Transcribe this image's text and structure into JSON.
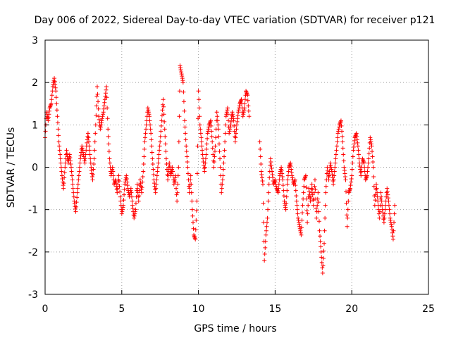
{
  "chart_data": {
    "type": "scatter",
    "title": "Day 006 of 2022, Sidereal Day-to-day VTEC variation (SDTVAR) for receiver p121",
    "xlabel": "GPS time / hours",
    "ylabel": "SDTVAR / TECUs",
    "xlim": [
      0,
      25
    ],
    "ylim": [
      -3,
      3
    ],
    "xticks": [
      0,
      5,
      10,
      15,
      20,
      25
    ],
    "yticks": [
      -3,
      -2,
      -1,
      0,
      1,
      2,
      3
    ],
    "grid": true,
    "marker": "+",
    "color": "#ff0000",
    "series": [
      {
        "name": "SDTVAR",
        "anchors": [
          [
            0.0,
            0.7
          ],
          [
            0.1,
            1.3
          ],
          [
            0.2,
            1.1
          ],
          [
            0.3,
            1.4
          ],
          [
            0.4,
            1.5
          ],
          [
            0.5,
            1.9
          ],
          [
            0.6,
            2.1
          ],
          [
            0.7,
            1.8
          ],
          [
            0.8,
            1.2
          ],
          [
            0.9,
            0.6
          ],
          [
            1.0,
            0.2
          ],
          [
            1.1,
            -0.2
          ],
          [
            1.2,
            -0.5
          ],
          [
            1.3,
            0.0
          ],
          [
            1.4,
            0.4
          ],
          [
            1.5,
            0.1
          ],
          [
            1.6,
            0.3
          ],
          [
            1.7,
            0.0
          ],
          [
            1.8,
            -0.4
          ],
          [
            1.9,
            -0.8
          ],
          [
            2.0,
            -1.05
          ],
          [
            2.1,
            -0.6
          ],
          [
            2.2,
            -0.2
          ],
          [
            2.3,
            0.2
          ],
          [
            2.4,
            0.5
          ],
          [
            2.5,
            0.3
          ],
          [
            2.6,
            0.1
          ],
          [
            2.7,
            0.5
          ],
          [
            2.8,
            0.8
          ],
          [
            2.9,
            0.4
          ],
          [
            3.0,
            0.0
          ],
          [
            3.1,
            -0.3
          ],
          [
            3.2,
            0.2
          ],
          [
            3.3,
            1.0
          ],
          [
            3.4,
            1.9
          ],
          [
            3.5,
            1.2
          ],
          [
            3.6,
            0.9
          ],
          [
            3.7,
            1.1
          ],
          [
            3.8,
            1.3
          ],
          [
            3.9,
            1.6
          ],
          [
            4.0,
            1.9
          ],
          [
            4.1,
            0.9
          ],
          [
            4.2,
            0.2
          ],
          [
            4.3,
            -0.2
          ],
          [
            4.4,
            0.0
          ],
          [
            4.5,
            -0.4
          ],
          [
            4.6,
            -0.3
          ],
          [
            4.7,
            -0.6
          ],
          [
            4.8,
            -0.2
          ],
          [
            4.9,
            -0.7
          ],
          [
            5.0,
            -1.1
          ],
          [
            5.1,
            -0.9
          ],
          [
            5.2,
            -0.4
          ],
          [
            5.3,
            -0.2
          ],
          [
            5.4,
            -0.5
          ],
          [
            5.5,
            -0.7
          ],
          [
            5.6,
            -0.5
          ],
          [
            5.7,
            -0.9
          ],
          [
            5.8,
            -1.2
          ],
          [
            5.9,
            -1.0
          ],
          [
            6.0,
            -0.4
          ],
          [
            6.1,
            -0.8
          ],
          [
            6.2,
            -0.3
          ],
          [
            6.3,
            -0.6
          ],
          [
            6.4,
            -0.1
          ],
          [
            6.5,
            0.6
          ],
          [
            6.6,
            1.0
          ],
          [
            6.7,
            1.4
          ],
          [
            6.8,
            1.2
          ],
          [
            6.9,
            0.8
          ],
          [
            7.0,
            0.2
          ],
          [
            7.1,
            -0.3
          ],
          [
            7.2,
            -0.6
          ],
          [
            7.3,
            -0.2
          ],
          [
            7.4,
            0.2
          ],
          [
            7.5,
            0.6
          ],
          [
            7.6,
            1.1
          ],
          [
            7.7,
            1.6
          ],
          [
            7.8,
            0.9
          ],
          [
            7.9,
            0.2
          ],
          [
            8.0,
            -0.3
          ],
          [
            8.1,
            0.1
          ],
          [
            8.2,
            -0.2
          ],
          [
            8.3,
            0.0
          ],
          [
            8.4,
            -0.4
          ],
          [
            8.5,
            -0.2
          ],
          [
            8.6,
            -0.8
          ],
          [
            8.7,
            0.0
          ],
          [
            8.8,
            2.4
          ],
          [
            8.9,
            2.2
          ],
          [
            9.0,
            2.0
          ],
          [
            9.1,
            1.1
          ],
          [
            9.2,
            0.5
          ],
          [
            9.3,
            0.0
          ],
          [
            9.4,
            -0.6
          ],
          [
            9.5,
            -0.2
          ],
          [
            9.6,
            -1.0
          ],
          [
            9.7,
            -1.6
          ],
          [
            9.8,
            -1.7
          ],
          [
            9.9,
            -0.8
          ],
          [
            10.0,
            1.8
          ],
          [
            10.1,
            1.0
          ],
          [
            10.2,
            0.6
          ],
          [
            10.3,
            0.2
          ],
          [
            10.4,
            -0.1
          ],
          [
            10.5,
            0.3
          ],
          [
            10.6,
            0.8
          ],
          [
            10.7,
            1.0
          ],
          [
            10.8,
            1.1
          ],
          [
            10.9,
            0.6
          ],
          [
            11.0,
            0.0
          ],
          [
            11.1,
            0.5
          ],
          [
            11.2,
            1.3
          ],
          [
            11.3,
            0.9
          ],
          [
            11.4,
            0.2
          ],
          [
            11.5,
            -0.6
          ],
          [
            11.6,
            -0.2
          ],
          [
            11.7,
            0.4
          ],
          [
            11.8,
            1.2
          ],
          [
            11.9,
            1.4
          ],
          [
            12.0,
            0.8
          ],
          [
            12.1,
            1.0
          ],
          [
            12.2,
            1.3
          ],
          [
            12.3,
            1.1
          ],
          [
            12.4,
            0.6
          ],
          [
            12.5,
            1.0
          ],
          [
            12.6,
            1.3
          ],
          [
            12.7,
            1.5
          ],
          [
            12.8,
            1.6
          ],
          [
            12.9,
            1.2
          ],
          [
            13.0,
            1.4
          ],
          [
            13.1,
            1.8
          ],
          [
            13.2,
            1.7
          ],
          [
            13.3,
            1.2
          ],
          [
            14.0,
            0.6
          ],
          [
            14.1,
            -0.1
          ],
          [
            14.2,
            -0.4
          ],
          [
            14.3,
            -2.2
          ],
          [
            14.4,
            -1.6
          ],
          [
            14.5,
            -1.2
          ],
          [
            14.6,
            -0.4
          ],
          [
            14.7,
            0.2
          ],
          [
            14.8,
            -0.1
          ],
          [
            14.9,
            -0.4
          ],
          [
            15.0,
            -0.3
          ],
          [
            15.1,
            -0.5
          ],
          [
            15.2,
            -0.6
          ],
          [
            15.3,
            -0.2
          ],
          [
            15.4,
            0.0
          ],
          [
            15.5,
            -0.3
          ],
          [
            15.6,
            -0.8
          ],
          [
            15.7,
            -1.0
          ],
          [
            15.8,
            -0.4
          ],
          [
            15.9,
            0.0
          ],
          [
            16.0,
            0.1
          ],
          [
            16.1,
            -0.2
          ],
          [
            16.2,
            -0.4
          ],
          [
            16.3,
            -0.3
          ],
          [
            16.4,
            -0.8
          ],
          [
            16.5,
            -1.2
          ],
          [
            16.6,
            -1.4
          ],
          [
            16.7,
            -1.6
          ],
          [
            16.8,
            -0.9
          ],
          [
            16.9,
            -0.3
          ],
          [
            17.0,
            -0.2
          ],
          [
            17.1,
            -1.3
          ],
          [
            17.2,
            -0.5
          ],
          [
            17.3,
            -0.8
          ],
          [
            17.4,
            -0.4
          ],
          [
            17.5,
            -0.9
          ],
          [
            17.6,
            -0.3
          ],
          [
            17.7,
            -1.2
          ],
          [
            17.8,
            -0.6
          ],
          [
            17.9,
            -1.5
          ],
          [
            18.0,
            -2.0
          ],
          [
            18.1,
            -2.5
          ],
          [
            18.2,
            -1.8
          ],
          [
            18.3,
            -0.6
          ],
          [
            18.4,
            0.0
          ],
          [
            18.5,
            -0.3
          ],
          [
            18.6,
            0.1
          ],
          [
            18.7,
            -0.1
          ],
          [
            18.8,
            -0.4
          ],
          [
            18.9,
            0.0
          ],
          [
            19.0,
            0.4
          ],
          [
            19.1,
            0.8
          ],
          [
            19.2,
            1.0
          ],
          [
            19.3,
            1.1
          ],
          [
            19.4,
            0.6
          ],
          [
            19.5,
            0.0
          ],
          [
            19.6,
            -0.3
          ],
          [
            19.7,
            -1.4
          ],
          [
            19.8,
            -0.6
          ],
          [
            19.9,
            -0.5
          ],
          [
            20.0,
            -0.2
          ],
          [
            20.1,
            0.4
          ],
          [
            20.2,
            0.7
          ],
          [
            20.3,
            0.8
          ],
          [
            20.4,
            0.5
          ],
          [
            20.5,
            0.1
          ],
          [
            20.6,
            -0.2
          ],
          [
            20.7,
            0.2
          ],
          [
            20.8,
            0.1
          ],
          [
            20.9,
            -0.3
          ],
          [
            21.0,
            -0.2
          ],
          [
            21.1,
            0.2
          ],
          [
            21.2,
            0.7
          ],
          [
            21.3,
            0.5
          ],
          [
            21.4,
            0.0
          ],
          [
            21.5,
            -0.9
          ],
          [
            21.6,
            -0.4
          ],
          [
            21.7,
            -0.8
          ],
          [
            21.8,
            -1.2
          ],
          [
            21.9,
            -0.6
          ],
          [
            22.0,
            -1.0
          ],
          [
            22.1,
            -1.3
          ],
          [
            22.2,
            -0.9
          ],
          [
            22.3,
            -0.5
          ],
          [
            22.4,
            -0.8
          ],
          [
            22.5,
            -1.2
          ],
          [
            22.6,
            -1.4
          ],
          [
            22.7,
            -1.7
          ],
          [
            22.8,
            -0.9
          ]
        ]
      }
    ]
  }
}
